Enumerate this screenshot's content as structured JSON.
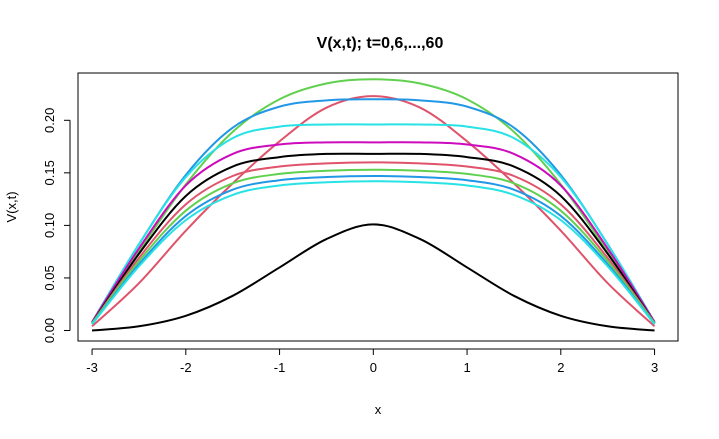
{
  "chart_data": {
    "type": "line",
    "title": "V(x,t); t=0,6,...,60",
    "xlabel": "x",
    "ylabel": "V(x,t)",
    "xlim": [
      -3.15,
      3.25
    ],
    "ylim": [
      -0.01,
      0.245
    ],
    "xticks": [
      -3,
      -2,
      -1,
      0,
      1,
      2,
      3
    ],
    "yticks": [
      0.0,
      0.05,
      0.1,
      0.15,
      0.2
    ],
    "xtick_labels": [
      "-3",
      "-2",
      "-1",
      "0",
      "1",
      "2",
      "3"
    ],
    "ytick_labels": [
      "0.00",
      "0.05",
      "0.10",
      "0.15",
      "0.20"
    ],
    "x": [
      -3,
      -2.5,
      -2,
      -1.5,
      -1,
      -0.5,
      0,
      0.5,
      1,
      1.5,
      2,
      2.5,
      3
    ],
    "series": [
      {
        "color": "#000000",
        "values": [
          0.0,
          0.004,
          0.014,
          0.033,
          0.06,
          0.087,
          0.101,
          0.087,
          0.06,
          0.033,
          0.014,
          0.004,
          0.0
        ]
      },
      {
        "color": "#DF536B",
        "values": [
          0.004,
          0.045,
          0.095,
          0.14,
          0.18,
          0.212,
          0.223,
          0.212,
          0.18,
          0.14,
          0.095,
          0.045,
          0.004
        ]
      },
      {
        "color": "#61D04F",
        "values": [
          0.007,
          0.075,
          0.139,
          0.189,
          0.22,
          0.235,
          0.239,
          0.235,
          0.22,
          0.189,
          0.139,
          0.075,
          0.007
        ]
      },
      {
        "color": "#2297E6",
        "values": [
          0.008,
          0.082,
          0.148,
          0.193,
          0.213,
          0.219,
          0.22,
          0.219,
          0.213,
          0.193,
          0.148,
          0.082,
          0.008
        ]
      },
      {
        "color": "#28E2E5",
        "values": [
          0.008,
          0.082,
          0.146,
          0.183,
          0.194,
          0.196,
          0.196,
          0.196,
          0.194,
          0.183,
          0.146,
          0.082,
          0.008
        ]
      },
      {
        "color": "#CD0BBC",
        "values": [
          0.008,
          0.078,
          0.138,
          0.168,
          0.177,
          0.179,
          0.179,
          0.179,
          0.177,
          0.168,
          0.138,
          0.078,
          0.008
        ]
      },
      {
        "color": "#000000",
        "values": [
          0.007,
          0.073,
          0.128,
          0.156,
          0.165,
          0.168,
          0.168,
          0.168,
          0.165,
          0.156,
          0.128,
          0.073,
          0.007
        ]
      },
      {
        "color": "#DF536B",
        "values": [
          0.007,
          0.069,
          0.12,
          0.147,
          0.156,
          0.159,
          0.16,
          0.159,
          0.156,
          0.147,
          0.12,
          0.069,
          0.007
        ]
      },
      {
        "color": "#61D04F",
        "values": [
          0.007,
          0.066,
          0.114,
          0.14,
          0.149,
          0.152,
          0.153,
          0.152,
          0.149,
          0.14,
          0.114,
          0.066,
          0.007
        ]
      },
      {
        "color": "#2297E6",
        "values": [
          0.006,
          0.063,
          0.109,
          0.134,
          0.143,
          0.146,
          0.147,
          0.146,
          0.143,
          0.134,
          0.109,
          0.063,
          0.006
        ]
      },
      {
        "color": "#28E2E5",
        "values": [
          0.006,
          0.061,
          0.105,
          0.129,
          0.138,
          0.141,
          0.142,
          0.141,
          0.138,
          0.129,
          0.105,
          0.061,
          0.006
        ]
      }
    ]
  }
}
